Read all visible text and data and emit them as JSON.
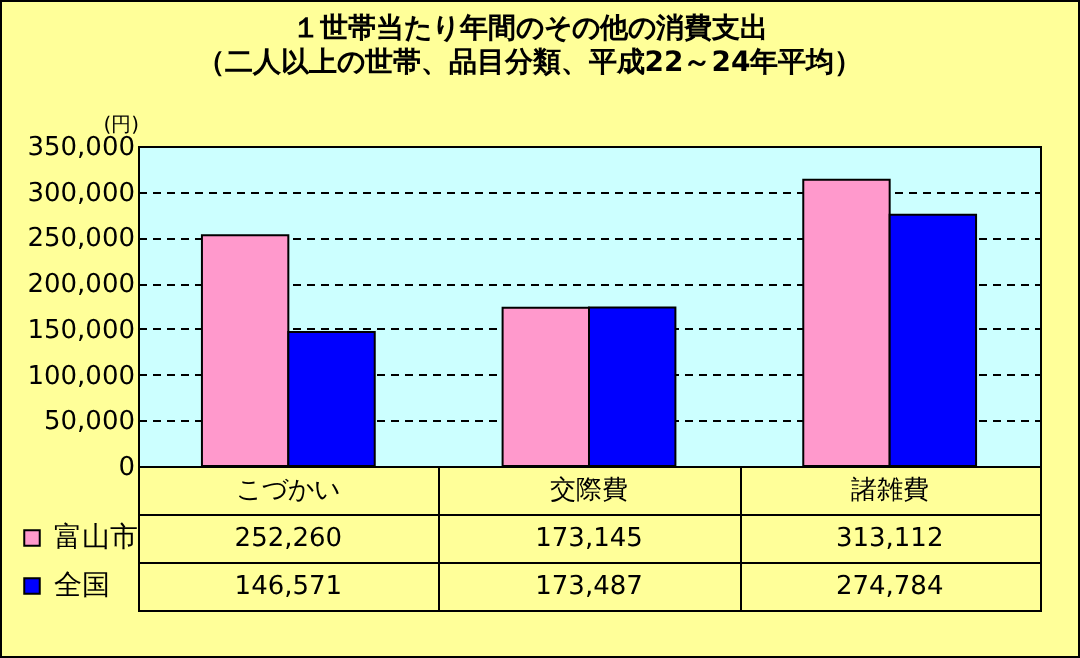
{
  "chart_data": {
    "type": "bar",
    "title": "１世帯当たり年間のその他の消費支出",
    "subtitle": "（二人以上の世帯、品目分類、平成22～24年平均）",
    "ylabel": "(円)",
    "categories": [
      "こづかい",
      "交際費",
      "諸雑費"
    ],
    "series": [
      {
        "name": "富山市",
        "color": "#ff99cc",
        "values": [
          252260,
          173145,
          313112
        ],
        "value_labels": [
          "252,260",
          "173,145",
          "313,112"
        ]
      },
      {
        "name": "全国",
        "color": "#0000ff",
        "values": [
          146571,
          173487,
          274784
        ],
        "value_labels": [
          "146,571",
          "173,487",
          "274,784"
        ]
      }
    ],
    "ylim": [
      0,
      350000
    ],
    "yticks": [
      0,
      {
        "value": 50000,
        "label": "50,000"
      },
      {
        "value": 100000,
        "label": "100,000"
      },
      {
        "value": 150000,
        "label": "150,000"
      },
      {
        "value": 200000,
        "label": "200,000"
      },
      {
        "value": 250000,
        "label": "250,000"
      },
      {
        "value": 300000,
        "label": "300,000"
      },
      {
        "value": 350000,
        "label": "350,000"
      }
    ],
    "grid": "y",
    "legend": "bottom left"
  }
}
